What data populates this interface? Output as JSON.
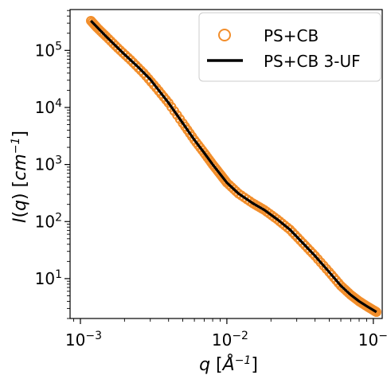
{
  "chart_data": {
    "type": "scatter",
    "xscale": "log",
    "yscale": "log",
    "xlim": [
      0.00085,
      0.115
    ],
    "ylim": [
      2.0,
      520000
    ],
    "xlabel": "q [Å⁻¹]",
    "ylabel": "I(q) [cm⁻¹]",
    "xlabel_parts": {
      "var": "q",
      "unit_open": " [",
      "unit": "Å",
      "exp": "−1",
      "unit_close": "]"
    },
    "ylabel_parts": {
      "var": "I",
      "paren_open": "(",
      "arg": "q",
      "paren_close": ")",
      "unit_open": " [",
      "unit": "cm",
      "exp": "−1",
      "unit_close": "]"
    },
    "xticks": [
      {
        "value": 0.001,
        "base": "10",
        "exp": "−3"
      },
      {
        "value": 0.01,
        "base": "10",
        "exp": "−2"
      },
      {
        "value": 0.1,
        "base": "10",
        "exp": "−1"
      }
    ],
    "yticks": [
      {
        "value": 10,
        "base": "10",
        "exp": "1"
      },
      {
        "value": 100,
        "base": "10",
        "exp": "2"
      },
      {
        "value": 1000,
        "base": "10",
        "exp": "3"
      },
      {
        "value": 10000,
        "base": "10",
        "exp": "4"
      },
      {
        "value": 100000,
        "base": "10",
        "exp": "5"
      }
    ],
    "legend_position": "top-right",
    "grid": false,
    "series": [
      {
        "name": "PS+CB",
        "style": "open-circle",
        "color": "#f28e2b",
        "x": [
          0.00118,
          0.0013,
          0.0015,
          0.0018,
          0.0022,
          0.0027,
          0.0033,
          0.004,
          0.005,
          0.006,
          0.007,
          0.008,
          0.009,
          0.01,
          0.012,
          0.015,
          0.018,
          0.022,
          0.027,
          0.033,
          0.04,
          0.05,
          0.06,
          0.07,
          0.08,
          0.09,
          0.1,
          0.105
        ],
        "y": [
          330000,
          250000,
          175000,
          110000,
          68000,
          40000,
          22000,
          12000,
          5300,
          2700,
          1600,
          1000,
          680,
          480,
          310,
          210,
          160,
          110,
          72,
          42,
          25,
          13,
          7.5,
          5.2,
          4.0,
          3.3,
          2.8,
          2.6
        ]
      },
      {
        "name": "PS+CB 3-UF",
        "style": "line",
        "color": "#000000",
        "x": [
          0.00118,
          0.0015,
          0.002,
          0.0025,
          0.003,
          0.004,
          0.005,
          0.006,
          0.007,
          0.008,
          0.009,
          0.01,
          0.012,
          0.015,
          0.018,
          0.022,
          0.027,
          0.033,
          0.04,
          0.05,
          0.06,
          0.07,
          0.08,
          0.09,
          0.1,
          0.105
        ],
        "y": [
          330000,
          175000,
          85000,
          50000,
          31000,
          12000,
          5300,
          2700,
          1600,
          1000,
          680,
          480,
          310,
          210,
          160,
          110,
          72,
          42,
          25,
          13,
          7.5,
          5.2,
          4.0,
          3.3,
          2.8,
          2.6
        ]
      }
    ]
  }
}
